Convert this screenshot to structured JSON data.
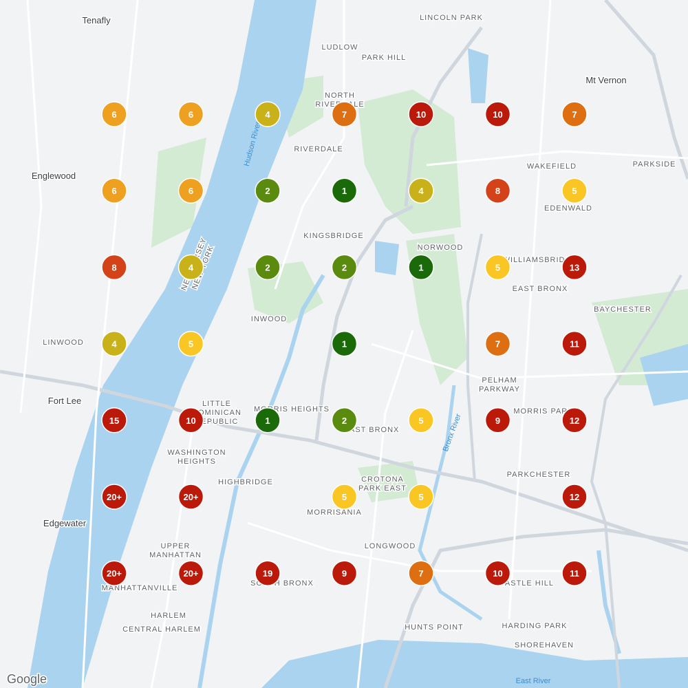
{
  "markers": [
    {
      "label": "6",
      "color": "#eea020"
    },
    {
      "label": "6",
      "color": "#eea020"
    },
    {
      "label": "4",
      "color": "#c9b11a"
    },
    {
      "label": "7",
      "color": "#dd6f12"
    },
    {
      "label": "10",
      "color": "#bb1a0a"
    },
    {
      "label": "10",
      "color": "#bb1a0a"
    },
    {
      "label": "7",
      "color": "#dd6f12"
    },
    {
      "label": "6",
      "color": "#eea020"
    },
    {
      "label": "6",
      "color": "#eea020"
    },
    {
      "label": "2",
      "color": "#5a8a0e"
    },
    {
      "label": "1",
      "color": "#1b6a0a"
    },
    {
      "label": "4",
      "color": "#c9b11a"
    },
    {
      "label": "8",
      "color": "#d4421a"
    },
    {
      "label": "5",
      "color": "#f9c623"
    },
    {
      "label": "8",
      "color": "#d4421a"
    },
    {
      "label": "4",
      "color": "#c9b11a"
    },
    {
      "label": "2",
      "color": "#5a8a0e"
    },
    {
      "label": "2",
      "color": "#5a8a0e"
    },
    {
      "label": "1",
      "color": "#1b6a0a"
    },
    {
      "label": "5",
      "color": "#f9c623"
    },
    {
      "label": "13",
      "color": "#bb1a0a"
    },
    {
      "label": "4",
      "color": "#c9b11a"
    },
    {
      "label": "5",
      "color": "#f9c623"
    },
    {
      "label": "1",
      "color": "#1b6a0a"
    },
    {
      "label": "7",
      "color": "#dd6f12"
    },
    {
      "label": "11",
      "color": "#bb1a0a"
    },
    {
      "label": "15",
      "color": "#bb1a0a"
    },
    {
      "label": "10",
      "color": "#bb1a0a"
    },
    {
      "label": "1",
      "color": "#1b6a0a"
    },
    {
      "label": "2",
      "color": "#5a8a0e"
    },
    {
      "label": "5",
      "color": "#f9c623"
    },
    {
      "label": "9",
      "color": "#bb1a0a"
    },
    {
      "label": "12",
      "color": "#bb1a0a"
    },
    {
      "label": "20+",
      "color": "#bb1a0a"
    },
    {
      "label": "20+",
      "color": "#bb1a0a"
    },
    {
      "label": "5",
      "color": "#f9c623"
    },
    {
      "label": "5",
      "color": "#f9c623"
    },
    {
      "label": "12",
      "color": "#bb1a0a"
    },
    {
      "label": "20+",
      "color": "#bb1a0a"
    },
    {
      "label": "20+",
      "color": "#bb1a0a"
    },
    {
      "label": "19",
      "color": "#bb1a0a"
    },
    {
      "label": "9",
      "color": "#bb1a0a"
    },
    {
      "label": "7",
      "color": "#dd6f12"
    },
    {
      "label": "10",
      "color": "#bb1a0a"
    },
    {
      "label": "11",
      "color": "#bb1a0a"
    }
  ],
  "places": [
    "Tenafly",
    "Englewood",
    "Fort Lee",
    "Edgewater",
    "Mt Vernon",
    "LINWOOD",
    "LINCOLN PARK",
    "LUDLOW",
    "PARK HILL",
    "NORTH",
    "RIVERDALE",
    "RIVERDALE",
    "WAKEFIELD",
    "PARKSIDE",
    "EDENWALD",
    "KINGSBRIDGE",
    "NORWOOD",
    "WILLIAMSBRIDGE",
    "EAST BRONX",
    "BAYCHESTER",
    "INWOOD",
    "PELHAM",
    "PARKWAY",
    "LITTLE",
    "DOMINICAN",
    "REPUBLIC",
    "MORRIS HEIGHTS",
    "MORRIS PARK",
    "EAST BRONX",
    "WASHINGTON",
    "HEIGHTS",
    "HIGHBRIDGE",
    "PARKCHESTER",
    "CROTONA",
    "PARK EAST",
    "MORRISANIA",
    "LONGWOOD",
    "UPPER",
    "MANHATTAN",
    "MANHATTANVILLE",
    "SOUTH BRONX",
    "CASTLE HILL",
    "HARLEM",
    "CENTRAL HARLEM",
    "HUNTS POINT",
    "HARDING PARK",
    "SHOREHAVEN",
    "NEW JERSEY",
    "NEW YORK",
    "Hudson River",
    "Bronx River",
    "East River"
  ],
  "logo": "Google"
}
